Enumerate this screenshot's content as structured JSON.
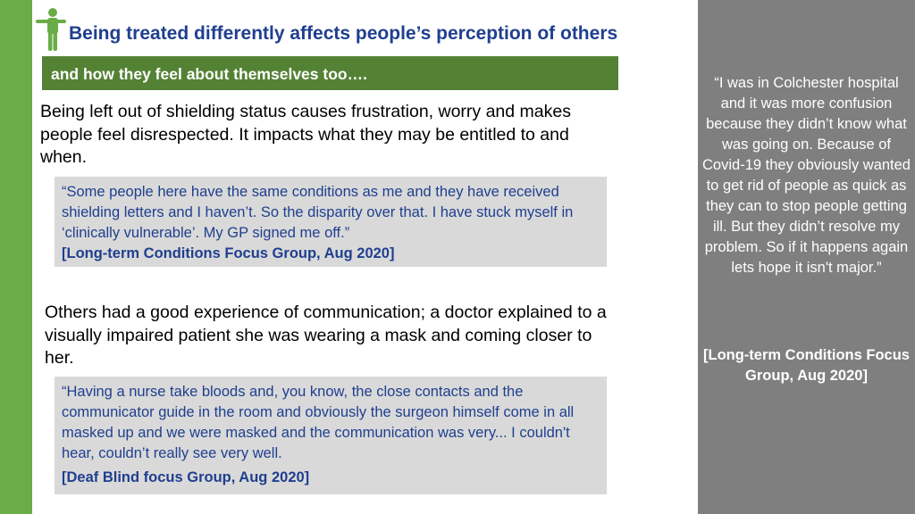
{
  "icon": "person-icon",
  "colors": {
    "left_bar": "#6aac47",
    "title_text": "#1f3f8f",
    "subtitle_bar": "#548235",
    "quote_box": "#d9d9d9",
    "quote_text": "#1f3f8f",
    "right_panel": "#7f7f7f"
  },
  "header": {
    "title": "Being treated differently affects people’s perception of others",
    "subtitle": "and how they feel about themselves too…."
  },
  "main": {
    "paragraph1": "Being left out of shielding status causes frustration, worry and makes people feel disrespected.  It impacts what they may be entitled to and when.",
    "quote1": {
      "text": "“Some people here have the same conditions as me and they have received shielding letters and I haven’t. So the disparity over that.  I have stuck myself in ‘clinically vulnerable’.  My GP signed me off.”",
      "source": "[Long-term Conditions Focus Group, Aug 2020]"
    },
    "paragraph2": "Others had a good experience of communication; a doctor explained to a visually impaired patient she was wearing a mask and coming closer to her.",
    "quote2": {
      "text": "“Having a nurse take bloods and, you know, the close contacts and the communicator guide in the room and obviously the surgeon himself come in all masked up and we were masked and the communication was very... I couldn't hear, couldn’t really see very well.",
      "source": "[Deaf Blind focus Group, Aug 2020]"
    }
  },
  "sidebar": {
    "quote": "“I was in Colchester hospital and it was more confusion because they didn’t know what was going on.  Because of Covid-19 they obviously wanted to get rid of people as quick as they can to stop people getting ill.  But they didn’t resolve my problem. So if it happens again lets hope it isn't major.”",
    "source": "[Long-term Conditions Focus Group, Aug 2020]"
  }
}
